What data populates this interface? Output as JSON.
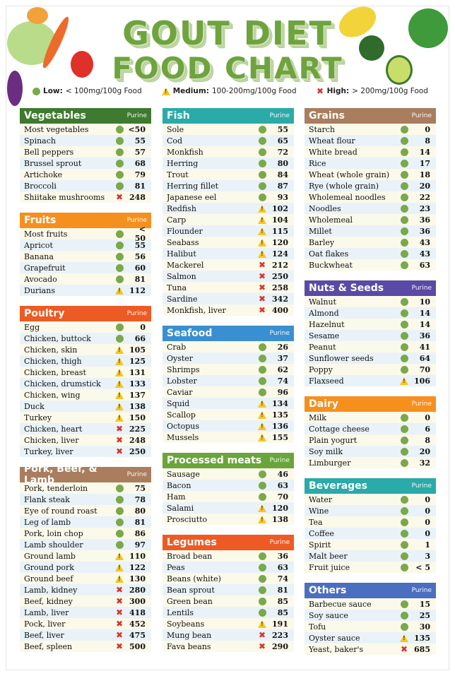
{
  "title_line1": "GOUT DIET",
  "title_line2": "FOOD CHART",
  "legend": [
    {
      "level": "low",
      "label": "Low:",
      "text": "< 100mg/100g Food",
      "icon": "green-circle-icon"
    },
    {
      "level": "medium",
      "label": "Medium:",
      "text": "100-200mg/100g Food",
      "icon": "warning-triangle-icon"
    },
    {
      "level": "high",
      "label": "High:",
      "text": "> 200mg/100g Food",
      "icon": "red-cross-icon"
    }
  ],
  "colors": {
    "low": "#7aa84a",
    "medium": "#f3c623",
    "high": "#d8322e",
    "title": "#6ea33e"
  },
  "columns": [
    [
      {
        "title": "Vegetables",
        "purine_label": "Purine",
        "color": "#3e7a2f",
        "items": [
          [
            "Most vegetables",
            "low",
            "<50"
          ],
          [
            "Spinach",
            "low",
            "55"
          ],
          [
            "Bell peppers",
            "low",
            "57"
          ],
          [
            "Brussel sprout",
            "low",
            "68"
          ],
          [
            "Artichoke",
            "low",
            "79"
          ],
          [
            "Broccoli",
            "low",
            "81"
          ],
          [
            "Shiitake mushrooms",
            "high",
            "248"
          ]
        ]
      },
      {
        "title": "Fruits",
        "purine_label": "Purine",
        "color": "#f5901e",
        "items": [
          [
            "Most fruits",
            "low",
            "< 50"
          ],
          [
            "Apricot",
            "low",
            "55"
          ],
          [
            "Banana",
            "low",
            "56"
          ],
          [
            "Grapefruit",
            "low",
            "60"
          ],
          [
            "Avocado",
            "low",
            "81"
          ],
          [
            "Durians",
            "medium",
            "112"
          ]
        ]
      },
      {
        "title": "Poultry",
        "purine_label": "Purine",
        "color": "#ee5a24",
        "items": [
          [
            "Egg",
            "low",
            "0"
          ],
          [
            "Chicken, buttock",
            "low",
            "66"
          ],
          [
            "Chicken, skin",
            "medium",
            "105"
          ],
          [
            "Chicken, thigh",
            "medium",
            "125"
          ],
          [
            "Chicken, breast",
            "medium",
            "131"
          ],
          [
            "Chicken, drumstick",
            "medium",
            "133"
          ],
          [
            "Chicken, wing",
            "medium",
            "137"
          ],
          [
            "Duck",
            "medium",
            "138"
          ],
          [
            "Turkey",
            "medium",
            "150"
          ],
          [
            "Chicken, heart",
            "high",
            "225"
          ],
          [
            "Chicken, liver",
            "high",
            "248"
          ],
          [
            "Turkey, liver",
            "high",
            "250"
          ]
        ]
      },
      {
        "title": "Pork, Beef, & Lamb",
        "purine_label": "Purine",
        "color": "#a97d5d",
        "items": [
          [
            "Pork, tenderloin",
            "low",
            "75"
          ],
          [
            "Flank steak",
            "low",
            "78"
          ],
          [
            "Eye of round roast",
            "low",
            "80"
          ],
          [
            "Leg of lamb",
            "low",
            "81"
          ],
          [
            "Pork, loin chop",
            "low",
            "86"
          ],
          [
            "Lamb shoulder",
            "low",
            "97"
          ],
          [
            "Ground lamb",
            "medium",
            "110"
          ],
          [
            "Ground pork",
            "medium",
            "122"
          ],
          [
            "Ground beef",
            "medium",
            "130"
          ],
          [
            "Lamb, kidney",
            "high",
            "280"
          ],
          [
            "Beef, kidney",
            "high",
            "300"
          ],
          [
            "Lamb, liver",
            "high",
            "418"
          ],
          [
            "Pock, liver",
            "high",
            "452"
          ],
          [
            "Beef, liver",
            "high",
            "475"
          ],
          [
            "Beef, spleen",
            "high",
            "500"
          ]
        ]
      }
    ],
    [
      {
        "title": "Fish",
        "purine_label": "Purine",
        "color": "#2aaaa8",
        "items": [
          [
            "Sole",
            "low",
            "55"
          ],
          [
            "Cod",
            "low",
            "65"
          ],
          [
            "Monkfish",
            "low",
            "72"
          ],
          [
            "Herring",
            "low",
            "80"
          ],
          [
            "Trout",
            "low",
            "84"
          ],
          [
            "Herring fillet",
            "low",
            "87"
          ],
          [
            "Japanese eel",
            "low",
            "93"
          ],
          [
            "Redfish",
            "medium",
            "102"
          ],
          [
            "Carp",
            "medium",
            "104"
          ],
          [
            "Flounder",
            "medium",
            "115"
          ],
          [
            "Seabass",
            "medium",
            "120"
          ],
          [
            "Halibut",
            "medium",
            "124"
          ],
          [
            "Mackerel",
            "high",
            "212"
          ],
          [
            "Salmon",
            "high",
            "250"
          ],
          [
            "Tuna",
            "high",
            "258"
          ],
          [
            "Sardine",
            "high",
            "342"
          ],
          [
            "Monkfish, liver",
            "high",
            "400"
          ]
        ]
      },
      {
        "title": "Seafood",
        "purine_label": "Purine",
        "color": "#3a8fd0",
        "items": [
          [
            "Crab",
            "low",
            "26"
          ],
          [
            "Oyster",
            "low",
            "37"
          ],
          [
            "Shrimps",
            "low",
            "62"
          ],
          [
            "Lobster",
            "low",
            "74"
          ],
          [
            "Caviar",
            "low",
            "96"
          ],
          [
            "Squid",
            "medium",
            "134"
          ],
          [
            "Scallop",
            "medium",
            "135"
          ],
          [
            "Octopus",
            "medium",
            "136"
          ],
          [
            "Mussels",
            "medium",
            "155"
          ]
        ]
      },
      {
        "title": "Processed meats",
        "purine_label": "Purine",
        "color": "#6aa53b",
        "items": [
          [
            "Sausage",
            "low",
            "46"
          ],
          [
            "Bacon",
            "low",
            "63"
          ],
          [
            "Ham",
            "low",
            "70"
          ],
          [
            "Salami",
            "medium",
            "120"
          ],
          [
            "Prosciutto",
            "medium",
            "138"
          ]
        ]
      },
      {
        "title": "Legumes",
        "purine_label": "Purine",
        "color": "#ee5a24",
        "items": [
          [
            "Broad bean",
            "low",
            "36"
          ],
          [
            "Peas",
            "low",
            "63"
          ],
          [
            "Beans (white)",
            "low",
            "74"
          ],
          [
            "Bean sprout",
            "low",
            "81"
          ],
          [
            "Green bean",
            "low",
            "85"
          ],
          [
            "Lentils",
            "low",
            "85"
          ],
          [
            "Soybeans",
            "medium",
            "191"
          ],
          [
            "Mung bean",
            "high",
            "223"
          ],
          [
            "Fava beans",
            "high",
            "290"
          ]
        ]
      }
    ],
    [
      {
        "title": "Grains",
        "purine_label": "Purine",
        "color": "#a97d5d",
        "items": [
          [
            "Starch",
            "low",
            "0"
          ],
          [
            "Wheat flour",
            "low",
            "8"
          ],
          [
            "White bread",
            "low",
            "14"
          ],
          [
            "Rice",
            "low",
            "17"
          ],
          [
            "Wheat (whole grain)",
            "low",
            "18"
          ],
          [
            "Rye (whole grain)",
            "low",
            "20"
          ],
          [
            "Wholemeal noodles",
            "low",
            "22"
          ],
          [
            "Noodles",
            "low",
            "23"
          ],
          [
            "Wholemeal",
            "low",
            "36"
          ],
          [
            "Millet",
            "low",
            "36"
          ],
          [
            "Barley",
            "low",
            "43"
          ],
          [
            "Oat flakes",
            "low",
            "43"
          ],
          [
            "Buckwheat",
            "low",
            "63"
          ]
        ]
      },
      {
        "title": "Nuts & Seeds",
        "purine_label": "Purine",
        "color": "#5a4aa6",
        "items": [
          [
            "Walnut",
            "low",
            "10"
          ],
          [
            "Almond",
            "low",
            "14"
          ],
          [
            "Hazelnut",
            "low",
            "14"
          ],
          [
            "Sesame",
            "low",
            "36"
          ],
          [
            "Peanut",
            "low",
            "41"
          ],
          [
            "Sunflower seeds",
            "low",
            "64"
          ],
          [
            "Poppy",
            "low",
            "70"
          ],
          [
            "Flaxseed",
            "medium",
            "106"
          ]
        ]
      },
      {
        "title": "Dairy",
        "purine_label": "Purine",
        "color": "#f5901e",
        "items": [
          [
            "Milk",
            "low",
            "0"
          ],
          [
            "Cottage cheese",
            "low",
            "6"
          ],
          [
            "Plain yogurt",
            "low",
            "8"
          ],
          [
            "Soy milk",
            "low",
            "20"
          ],
          [
            "Limburger",
            "low",
            "32"
          ]
        ]
      },
      {
        "title": "Beverages",
        "purine_label": "Purine",
        "color": "#2aaaa8",
        "items": [
          [
            "Water",
            "low",
            "0"
          ],
          [
            "Wine",
            "low",
            "0"
          ],
          [
            "Tea",
            "low",
            "0"
          ],
          [
            "Coffee",
            "low",
            "0"
          ],
          [
            "Spirit",
            "low",
            "1"
          ],
          [
            "Malt beer",
            "low",
            "3"
          ],
          [
            "Fruit juice",
            "low",
            "< 5"
          ]
        ]
      },
      {
        "title": "Others",
        "purine_label": "Purine",
        "color": "#4a6fc0",
        "items": [
          [
            "Barbecue sauce",
            "low",
            "15"
          ],
          [
            "Soy sauce",
            "low",
            "25"
          ],
          [
            "Tofu",
            "low",
            "30"
          ],
          [
            "Oyster sauce",
            "medium",
            "135"
          ],
          [
            "Yeast, baker's",
            "high",
            "685"
          ]
        ]
      }
    ]
  ]
}
